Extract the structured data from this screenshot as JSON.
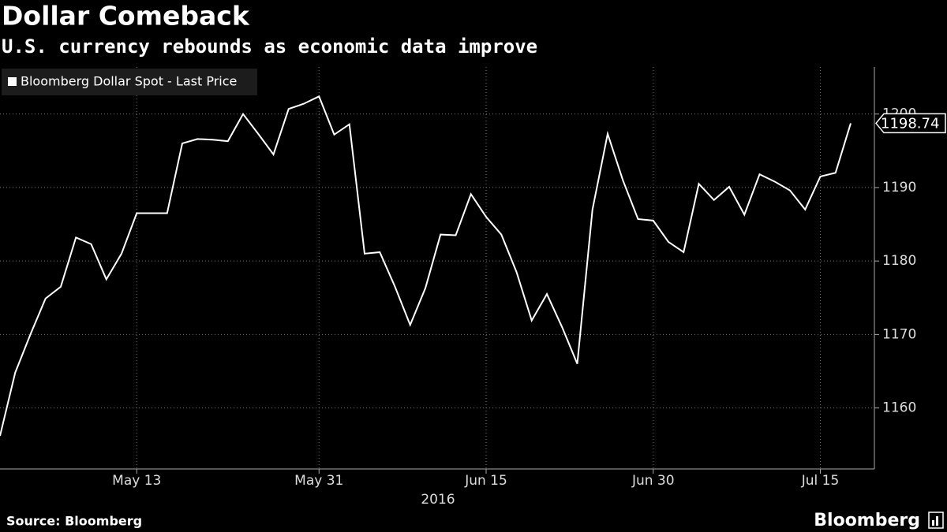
{
  "chart_data": {
    "type": "line",
    "title": "Dollar Comeback",
    "subtitle": "U.S. currency rebounds as economic data improve",
    "xlabel": "2016",
    "source": "Source: Bloomberg",
    "brand": "Bloomberg",
    "categories": [
      null,
      null,
      null,
      null,
      null,
      null,
      null,
      null,
      null,
      "May 13",
      null,
      null,
      null,
      null,
      null,
      null,
      null,
      null,
      null,
      null,
      null,
      "May 31",
      null,
      null,
      null,
      null,
      null,
      null,
      null,
      null,
      null,
      null,
      "Jun 15",
      null,
      null,
      null,
      null,
      null,
      null,
      null,
      null,
      null,
      null,
      "Jun 30",
      null,
      null,
      null,
      null,
      null,
      null,
      null,
      null,
      null,
      null,
      "Jul 15",
      null,
      null
    ],
    "series": [
      {
        "name": "Bloomberg Dollar Spot - Last Price",
        "color": "#ffffff",
        "values": [
          1156.2,
          1164.8,
          1170,
          1174.9,
          1176.5,
          1183.2,
          1182.3,
          1177.5,
          1181,
          1186.5,
          1186.5,
          1186.5,
          1196,
          1196.6,
          1196.5,
          1196.3,
          1200,
          1197.3,
          1194.5,
          1200.7,
          1201.4,
          1202.4,
          1197.2,
          1198.6,
          1181,
          1181.2,
          1176.5,
          1171.3,
          1176.3,
          1183.6,
          1183.5,
          1189.1,
          1186,
          1183.6,
          1178.5,
          1171.9,
          1175.5,
          1171,
          1166,
          1187,
          1197.3,
          1191,
          1185.7,
          1185.5,
          1182.6,
          1181.2,
          1190.5,
          1188.3,
          1190.1,
          1186.3,
          1191.8,
          1190.8,
          1189.6,
          1187,
          1191.5,
          1192,
          1198.74
        ]
      }
    ],
    "ylim": [
      1151.7,
      1206.4
    ],
    "yticks": [
      1160,
      1170,
      1180,
      1190,
      1200
    ],
    "grid": true,
    "legend": "top-left"
  }
}
